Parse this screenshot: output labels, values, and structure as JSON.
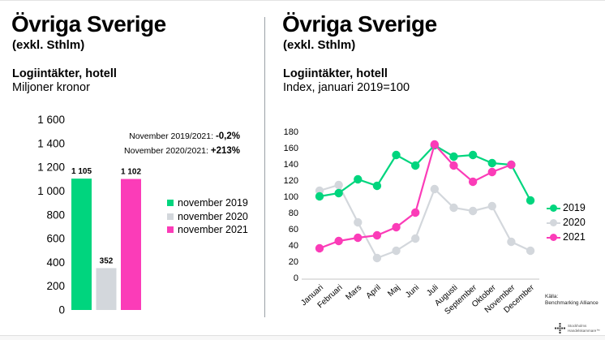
{
  "colors": {
    "green": "#00d57e",
    "gray": "#d3d7dc",
    "pink": "#fb3cb8",
    "axis": "#d9d9d9",
    "divider": "#9aa0a6"
  },
  "left": {
    "title": "Övriga Sverige",
    "subtitle": "(exkl. Sthlm)",
    "chart_title": "Logiintäkter, hotell",
    "chart_unit": "Miljoner kronor",
    "annotations": [
      {
        "label": "November 2019/2021: ",
        "value": "-0,2%"
      },
      {
        "label": "November 2020/2021: ",
        "value": "+213%"
      }
    ],
    "legend": [
      {
        "label": "november 2019",
        "color": "#00d57e"
      },
      {
        "label": "november 2020",
        "color": "#d3d7dc"
      },
      {
        "label": "november 2021",
        "color": "#fb3cb8"
      }
    ]
  },
  "right": {
    "title": "Övriga Sverige",
    "subtitle": "(exkl. Sthlm)",
    "chart_title": "Logiintäkter, hotell",
    "chart_unit": "Index, januari 2019=100",
    "legend": [
      {
        "label": "2019",
        "color": "#00d57e"
      },
      {
        "label": "2020",
        "color": "#d3d7dc"
      },
      {
        "label": "2021",
        "color": "#fb3cb8"
      }
    ],
    "source": {
      "line1": "Källa:",
      "line2": "Benchmarking Alliance"
    },
    "logo": {
      "line1": "Stockholms",
      "line2": "Handelskammare™"
    }
  },
  "chart_data": [
    {
      "type": "bar",
      "title": "Logiintäkter, hotell",
      "ylabel": "Miljoner kronor",
      "categories": [
        "november 2019",
        "november 2020",
        "november 2021"
      ],
      "values": [
        1105,
        352,
        1102
      ],
      "value_labels": [
        "1 105",
        "352",
        "1 102"
      ],
      "bar_colors": [
        "#00d57e",
        "#d3d7dc",
        "#fb3cb8"
      ],
      "ylim": [
        0,
        1600
      ],
      "ytick_step": 200,
      "ytick_labels": [
        "0",
        "200",
        "400",
        "600",
        "800",
        "1 000",
        "1 200",
        "1 400",
        "1 600"
      ],
      "grid": false,
      "legend_position": "right"
    },
    {
      "type": "line",
      "title": "Logiintäkter, hotell",
      "ylabel": "Index, januari 2019=100",
      "categories": [
        "Januari",
        "Februari",
        "Mars",
        "April",
        "Maj",
        "Juni",
        "Juli",
        "Augusti",
        "September",
        "Oktober",
        "November",
        "December"
      ],
      "series": [
        {
          "name": "2019",
          "color": "#00d57e",
          "values": [
            100,
            104,
            121,
            113,
            151,
            138,
            163,
            149,
            151,
            141,
            139,
            95
          ]
        },
        {
          "name": "2020",
          "color": "#d3d7dc",
          "values": [
            107,
            114,
            68,
            24,
            33,
            48,
            109,
            86,
            82,
            88,
            44,
            33
          ]
        },
        {
          "name": "2021",
          "color": "#fb3cb8",
          "values": [
            36,
            45,
            49,
            52,
            62,
            80,
            164,
            138,
            118,
            130,
            139,
            null
          ]
        }
      ],
      "ylim": [
        0,
        180
      ],
      "ytick_step": 20,
      "grid": false,
      "legend_position": "right"
    }
  ]
}
